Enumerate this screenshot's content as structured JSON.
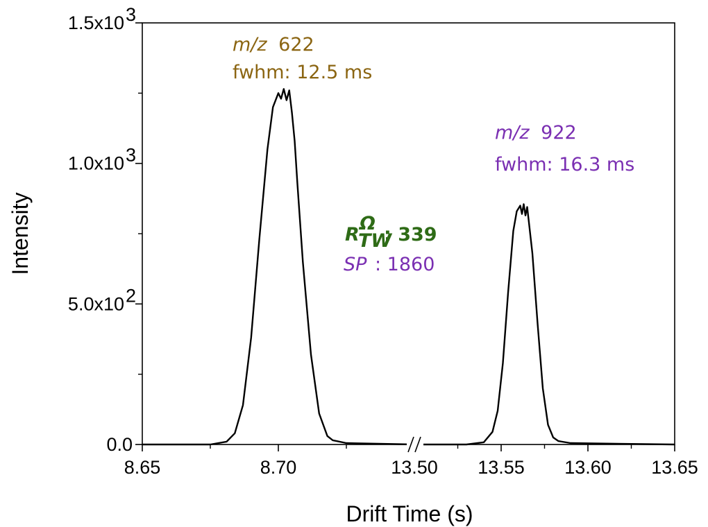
{
  "chart_data": {
    "type": "line",
    "xlabel": "Drift Time (s)",
    "ylabel": "Intensity",
    "ylim": [
      0,
      1500
    ],
    "yticks": [
      {
        "value": 0,
        "label": "0.0"
      },
      {
        "value": 500,
        "label": "5.0x10",
        "exp": "2"
      },
      {
        "value": 1000,
        "label": "1.0x10",
        "exp": "3"
      },
      {
        "value": 1500,
        "label": "1.5x10",
        "exp": "3"
      }
    ],
    "x_axis_break": true,
    "x_segments": [
      {
        "xlim": [
          8.65,
          8.75
        ],
        "ticks": [
          "8.65",
          "8.70"
        ]
      },
      {
        "xlim": [
          13.5,
          13.65
        ],
        "ticks": [
          "13.50",
          "13.55",
          "13.60",
          "13.65"
        ]
      }
    ],
    "series": [
      {
        "color": "#000000",
        "segment": 0,
        "x": [
          8.65,
          8.675,
          8.681,
          8.684,
          8.687,
          8.69,
          8.693,
          8.696,
          8.698,
          8.7,
          8.701,
          8.702,
          8.703,
          8.704,
          8.705,
          8.706,
          8.707,
          8.709,
          8.712,
          8.715,
          8.718,
          8.72,
          8.725,
          8.75
        ],
        "y": [
          0,
          0,
          10,
          40,
          140,
          380,
          730,
          1050,
          1200,
          1250,
          1230,
          1265,
          1225,
          1260,
          1180,
          1080,
          930,
          650,
          320,
          110,
          30,
          15,
          5,
          0
        ]
      },
      {
        "color": "#000000",
        "segment": 1,
        "x": [
          13.5,
          13.53,
          13.54,
          13.545,
          13.548,
          13.551,
          13.554,
          13.557,
          13.559,
          13.561,
          13.562,
          13.563,
          13.564,
          13.565,
          13.566,
          13.568,
          13.571,
          13.574,
          13.577,
          13.58,
          13.583,
          13.59,
          13.65
        ],
        "y": [
          0,
          0,
          8,
          45,
          120,
          290,
          540,
          760,
          830,
          850,
          820,
          855,
          815,
          845,
          790,
          680,
          430,
          200,
          70,
          25,
          12,
          5,
          0
        ]
      }
    ]
  },
  "annotations": {
    "peak1_mz_italic": "m/z",
    "peak1_mz_value": "622",
    "peak1_fwhm": "fwhm: 12.5 ms",
    "peak2_mz_italic": "m/z",
    "peak2_mz_value": "922",
    "peak2_fwhm": "fwhm: 16.3 ms",
    "res_symbol": "R",
    "res_sup": "Ω",
    "res_sub": "TW",
    "res_value": ": 339",
    "sp_symbol": "SP",
    "sp_value": ": 1860"
  },
  "colors": {
    "peak1": "#8b6512",
    "peak2": "#7a2fb2",
    "resolution": "#2e6b16",
    "line": "#000000"
  }
}
